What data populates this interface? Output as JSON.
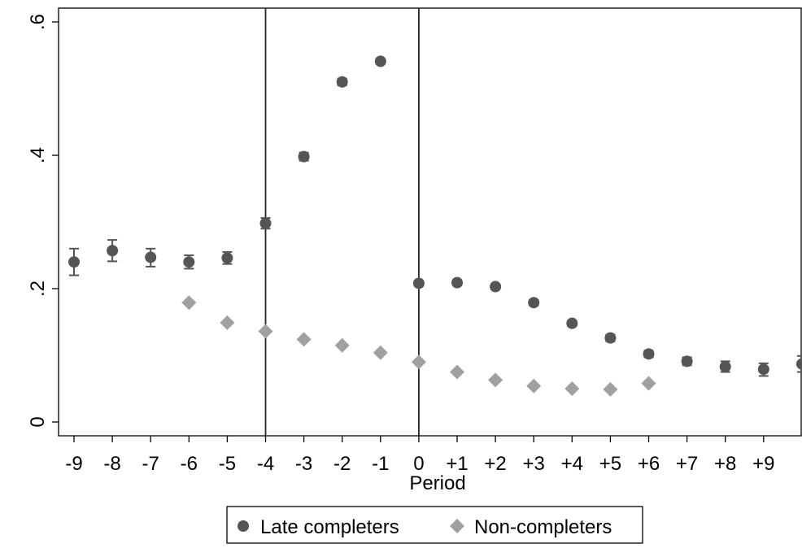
{
  "chart_data": {
    "type": "scatter",
    "xlabel": "Period",
    "ylabel": "",
    "ylim": [
      0,
      0.6
    ],
    "y_ticks": [
      {
        "value": 0,
        "label": "0"
      },
      {
        "value": 0.2,
        "label": ".2"
      },
      {
        "value": 0.4,
        "label": ".4"
      },
      {
        "value": 0.6,
        "label": ".6"
      }
    ],
    "x_ticks": [
      {
        "value": -9,
        "label": "-9"
      },
      {
        "value": -8,
        "label": "-8"
      },
      {
        "value": -7,
        "label": "-7"
      },
      {
        "value": -6,
        "label": "-6"
      },
      {
        "value": -5,
        "label": "-5"
      },
      {
        "value": -4,
        "label": "-4"
      },
      {
        "value": -3,
        "label": "-3"
      },
      {
        "value": -2,
        "label": "-2"
      },
      {
        "value": -1,
        "label": "-1"
      },
      {
        "value": 0,
        "label": "0"
      },
      {
        "value": 1,
        "label": "+1"
      },
      {
        "value": 2,
        "label": "+2"
      },
      {
        "value": 3,
        "label": "+3"
      },
      {
        "value": 4,
        "label": "+4"
      },
      {
        "value": 5,
        "label": "+5"
      },
      {
        "value": 6,
        "label": "+6"
      },
      {
        "value": 7,
        "label": "+7"
      },
      {
        "value": 8,
        "label": "+8"
      },
      {
        "value": 9,
        "label": "+9"
      }
    ],
    "xlim": [
      -9.4,
      10.2
    ],
    "vlines": [
      -4,
      0
    ],
    "grid": false,
    "legend_position": "bottom",
    "series": [
      {
        "name": "Late completers",
        "marker": "circle",
        "color": "#555555",
        "points": [
          {
            "x": -9,
            "y": 0.24,
            "lo": 0.22,
            "hi": 0.26
          },
          {
            "x": -8,
            "y": 0.257,
            "lo": 0.241,
            "hi": 0.273
          },
          {
            "x": -7,
            "y": 0.247,
            "lo": 0.233,
            "hi": 0.26
          },
          {
            "x": -6,
            "y": 0.24,
            "lo": 0.23,
            "hi": 0.25
          },
          {
            "x": -5,
            "y": 0.246,
            "lo": 0.237,
            "hi": 0.255
          },
          {
            "x": -4,
            "y": 0.298,
            "lo": 0.29,
            "hi": 0.306
          },
          {
            "x": -3,
            "y": 0.398,
            "lo": 0.392,
            "hi": 0.404
          },
          {
            "x": -2,
            "y": 0.51,
            "lo": 0.505,
            "hi": 0.515
          },
          {
            "x": -1,
            "y": 0.541,
            "lo": 0.537,
            "hi": 0.545
          },
          {
            "x": 0,
            "y": 0.208,
            "lo": 0.204,
            "hi": 0.212
          },
          {
            "x": 1,
            "y": 0.209,
            "lo": 0.205,
            "hi": 0.213
          },
          {
            "x": 2,
            "y": 0.203,
            "lo": 0.199,
            "hi": 0.207
          },
          {
            "x": 3,
            "y": 0.179,
            "lo": 0.175,
            "hi": 0.183
          },
          {
            "x": 4,
            "y": 0.148,
            "lo": 0.144,
            "hi": 0.152
          },
          {
            "x": 5,
            "y": 0.126,
            "lo": 0.121,
            "hi": 0.131
          },
          {
            "x": 6,
            "y": 0.102,
            "lo": 0.097,
            "hi": 0.107
          },
          {
            "x": 7,
            "y": 0.091,
            "lo": 0.085,
            "hi": 0.097
          },
          {
            "x": 8,
            "y": 0.083,
            "lo": 0.075,
            "hi": 0.091
          },
          {
            "x": 9,
            "y": 0.079,
            "lo": 0.069,
            "hi": 0.088
          },
          {
            "x": 10,
            "y": 0.087,
            "lo": 0.075,
            "hi": 0.099
          }
        ]
      },
      {
        "name": "Non-completers",
        "marker": "diamond",
        "color": "#a0a0a0",
        "points": [
          {
            "x": -6,
            "y": 0.179
          },
          {
            "x": -5,
            "y": 0.149
          },
          {
            "x": -4,
            "y": 0.136
          },
          {
            "x": -3,
            "y": 0.124
          },
          {
            "x": -2,
            "y": 0.115
          },
          {
            "x": -1,
            "y": 0.104
          },
          {
            "x": 0,
            "y": 0.09
          },
          {
            "x": 1,
            "y": 0.075
          },
          {
            "x": 2,
            "y": 0.063
          },
          {
            "x": 3,
            "y": 0.054
          },
          {
            "x": 4,
            "y": 0.05
          },
          {
            "x": 5,
            "y": 0.049
          },
          {
            "x": 6,
            "y": 0.058
          }
        ]
      }
    ]
  }
}
